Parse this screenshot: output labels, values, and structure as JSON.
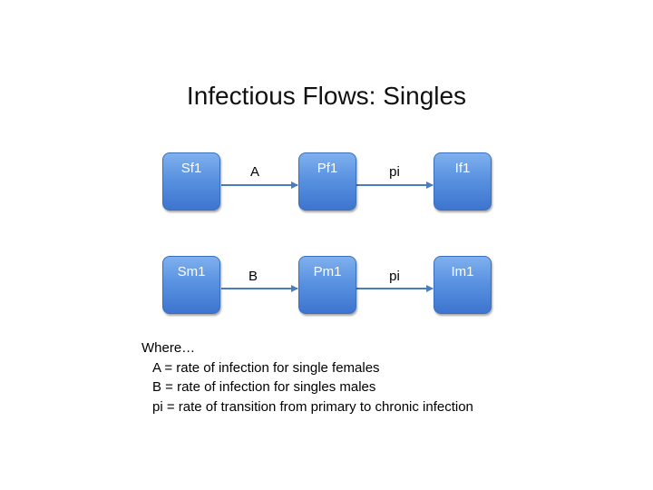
{
  "slide": {
    "title": "Infectious Flows: Singles"
  },
  "diagram": {
    "row1": {
      "nodes": [
        "Sf1",
        "Pf1",
        "If1"
      ],
      "edges": [
        "A",
        "pi"
      ]
    },
    "row2": {
      "nodes": [
        "Sm1",
        "Pm1",
        "Im1"
      ],
      "edges": [
        "B",
        "pi"
      ]
    },
    "colors": {
      "node_fill": "#4f86d9",
      "node_text": "#ffffff",
      "arrow": "#4a7ebb"
    }
  },
  "legend": {
    "intro": "Where…",
    "items": [
      "A = rate of infection for single females",
      "B = rate of infection for singles males",
      "pi = rate of transition from primary to chronic infection"
    ]
  }
}
